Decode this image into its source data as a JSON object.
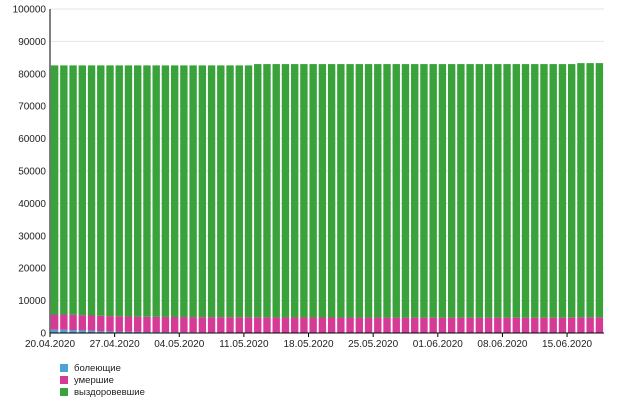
{
  "chart_data": {
    "type": "bar",
    "stacked": true,
    "ylim": [
      0,
      100000
    ],
    "yticks": [
      0,
      10000,
      20000,
      30000,
      40000,
      50000,
      60000,
      70000,
      80000,
      90000,
      100000
    ],
    "x_start": "20.04.2020",
    "x_tick_labels": [
      "20.04.2020",
      "27.04.2020",
      "04.05.2020",
      "11.05.2020",
      "18.05.2020",
      "25.05.2020",
      "01.06.2020",
      "08.06.2020",
      "15.06.2020"
    ],
    "categories": [
      "20.04.2020",
      "21.04.2020",
      "22.04.2020",
      "23.04.2020",
      "24.04.2020",
      "25.04.2020",
      "26.04.2020",
      "27.04.2020",
      "28.04.2020",
      "29.04.2020",
      "30.04.2020",
      "01.05.2020",
      "02.05.2020",
      "03.05.2020",
      "04.05.2020",
      "05.05.2020",
      "06.05.2020",
      "07.05.2020",
      "08.05.2020",
      "09.05.2020",
      "10.05.2020",
      "11.05.2020",
      "12.05.2020",
      "13.05.2020",
      "14.05.2020",
      "15.05.2020",
      "16.05.2020",
      "17.05.2020",
      "18.05.2020",
      "19.05.2020",
      "20.05.2020",
      "21.05.2020",
      "22.05.2020",
      "23.05.2020",
      "24.05.2020",
      "25.05.2020",
      "26.05.2020",
      "27.05.2020",
      "28.05.2020",
      "29.05.2020",
      "30.05.2020",
      "31.05.2020",
      "01.06.2020",
      "02.06.2020",
      "03.06.2020",
      "04.06.2020",
      "05.06.2020",
      "06.06.2020",
      "07.06.2020",
      "08.06.2020",
      "09.06.2020",
      "10.06.2020",
      "11.06.2020",
      "12.06.2020",
      "13.06.2020",
      "14.06.2020",
      "15.06.2020",
      "16.06.2020",
      "17.06.2020",
      "18.06.2020"
    ],
    "series": [
      {
        "name": "болеющие",
        "color": "#4aa3d4",
        "values": [
          1000,
          1000,
          900,
          800,
          700,
          600,
          500,
          450,
          400,
          350,
          300,
          280,
          260,
          240,
          220,
          200,
          190,
          180,
          170,
          160,
          150,
          140,
          130,
          120,
          110,
          100,
          100,
          90,
          90,
          80,
          80,
          70,
          70,
          60,
          60,
          60,
          50,
          50,
          50,
          50,
          40,
          40,
          40,
          40,
          40,
          40,
          40,
          40,
          30,
          30,
          30,
          30,
          30,
          30,
          30,
          30,
          30,
          30,
          30,
          30
        ]
      },
      {
        "name": "умершие",
        "color": "#d63a97",
        "values": [
          4700,
          4700,
          4700,
          4700,
          4700,
          4700,
          4700,
          4700,
          4700,
          4700,
          4700,
          4700,
          4700,
          4700,
          4700,
          4700,
          4700,
          4700,
          4700,
          4700,
          4700,
          4700,
          4700,
          4700,
          4700,
          4700,
          4700,
          4700,
          4700,
          4700,
          4700,
          4700,
          4700,
          4700,
          4700,
          4700,
          4700,
          4700,
          4700,
          4700,
          4700,
          4700,
          4700,
          4700,
          4700,
          4700,
          4700,
          4700,
          4700,
          4700,
          4700,
          4700,
          4700,
          4700,
          4700,
          4700,
          4700,
          4800,
          4800,
          4800
        ]
      },
      {
        "name": "выздоровевшие",
        "color": "#3aa23a",
        "values": [
          76900,
          76900,
          77000,
          77100,
          77200,
          77300,
          77400,
          77450,
          77500,
          77550,
          77600,
          77620,
          77640,
          77660,
          77680,
          77700,
          77710,
          77720,
          77730,
          77740,
          77750,
          77760,
          78170,
          78180,
          78190,
          78200,
          78200,
          78210,
          78210,
          78220,
          78220,
          78230,
          78230,
          78240,
          78240,
          78240,
          78250,
          78250,
          78250,
          78250,
          78260,
          78260,
          78260,
          78260,
          78260,
          78260,
          78260,
          78260,
          78270,
          78270,
          78270,
          78270,
          78270,
          78270,
          78270,
          78270,
          78270,
          78470,
          78470,
          78470
        ]
      }
    ]
  }
}
